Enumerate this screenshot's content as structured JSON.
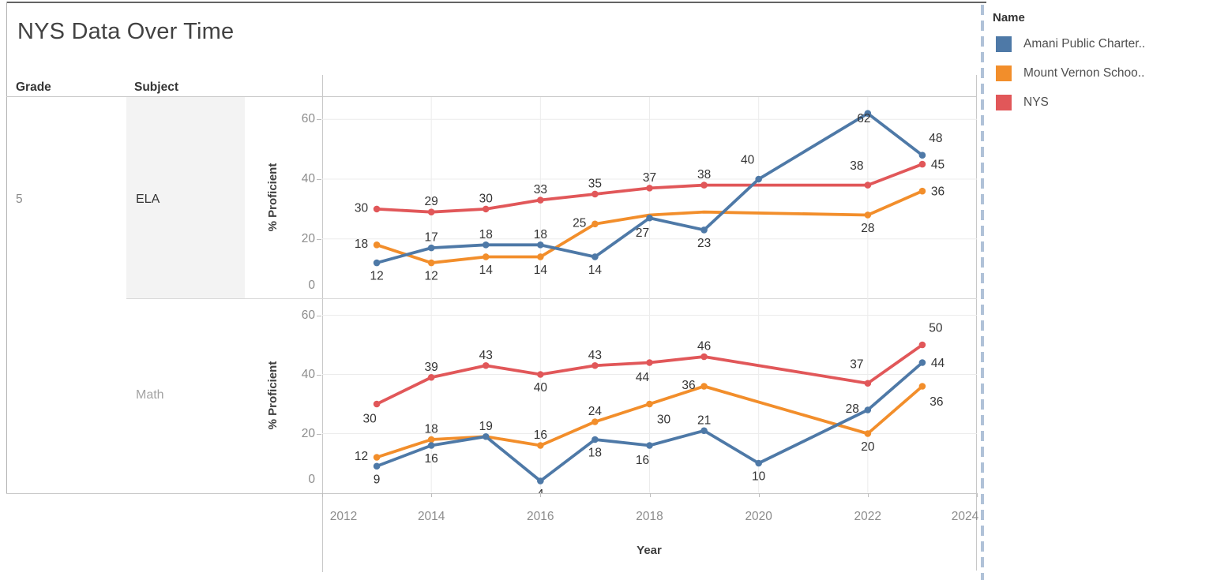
{
  "title": "NYS Data Over Time",
  "grade": {
    "header": "Grade",
    "value": "5"
  },
  "subject": {
    "header": "Subject",
    "rows": [
      "ELA",
      "Math"
    ]
  },
  "axes": {
    "x_title": "Year",
    "y_title": "% Proficient",
    "x_ticks": [
      2012,
      2014,
      2016,
      2018,
      2020,
      2022,
      2024
    ],
    "y_ticks": [
      0,
      20,
      40,
      60
    ]
  },
  "legend": {
    "title": "Name",
    "items": [
      {
        "label": "Amani Public Charter..",
        "color": "#4e79a7"
      },
      {
        "label": "Mount Vernon Schoo..",
        "color": "#f28e2b"
      },
      {
        "label": "NYS",
        "color": "#e15759"
      }
    ]
  },
  "ui_colors": {
    "dashed_divider": "#b0c2d8",
    "gridline": "#ececec",
    "axis_line": "#c8c8c8",
    "tick_text": "#8c8c8c",
    "data_label_text": "#343434"
  },
  "chart_data": [
    {
      "type": "line",
      "panel": "ELA",
      "xlabel": "Year",
      "ylabel": "% Proficient",
      "x_ticks": [
        2012,
        2014,
        2016,
        2018,
        2020,
        2022,
        2024
      ],
      "y_ticks": [
        0,
        20,
        40,
        60
      ],
      "ylim": [
        0,
        67
      ],
      "grid": true,
      "series": [
        {
          "name": "Amani Public Charter..",
          "color": "#4e79a7",
          "points": [
            [
              2013,
              12,
              "b"
            ],
            [
              2014,
              17,
              "a"
            ],
            [
              2015,
              18,
              "a"
            ],
            [
              2016,
              18,
              "a"
            ],
            [
              2017,
              14,
              "b"
            ],
            [
              2018,
              27,
              "bl"
            ],
            [
              2019,
              23,
              "b"
            ],
            [
              2020,
              40,
              "al"
            ],
            [
              2022,
              62,
              "ol"
            ],
            [
              2023,
              48,
              "ar"
            ]
          ]
        },
        {
          "name": "Mount Vernon Schoo..",
          "color": "#f28e2b",
          "points": [
            [
              2013,
              18,
              "l"
            ],
            [
              2014,
              12,
              "b"
            ],
            [
              2015,
              14,
              "b"
            ],
            [
              2016,
              14,
              "b"
            ],
            [
              2017,
              25,
              "l"
            ],
            [
              2018,
              28,
              null
            ],
            [
              2019,
              29,
              null
            ],
            [
              2022,
              28,
              "b"
            ],
            [
              2023,
              36,
              "r"
            ]
          ]
        },
        {
          "name": "NYS",
          "color": "#e15759",
          "points": [
            [
              2013,
              30,
              "l"
            ],
            [
              2014,
              29,
              "a"
            ],
            [
              2015,
              30,
              "a"
            ],
            [
              2016,
              33,
              "a"
            ],
            [
              2017,
              35,
              "a"
            ],
            [
              2018,
              37,
              "a"
            ],
            [
              2019,
              38,
              "a"
            ],
            [
              2022,
              38,
              "al"
            ],
            [
              2023,
              45,
              "r"
            ]
          ]
        }
      ]
    },
    {
      "type": "line",
      "panel": "Math",
      "xlabel": "Year",
      "ylabel": "% Proficient",
      "x_ticks": [
        2012,
        2014,
        2016,
        2018,
        2020,
        2022,
        2024
      ],
      "y_ticks": [
        0,
        20,
        40,
        60
      ],
      "ylim": [
        0,
        65
      ],
      "grid": true,
      "series": [
        {
          "name": "Amani Public Charter..",
          "color": "#4e79a7",
          "points": [
            [
              2013,
              9,
              "b"
            ],
            [
              2014,
              16,
              "b"
            ],
            [
              2015,
              19,
              "a"
            ],
            [
              2016,
              4,
              "b"
            ],
            [
              2017,
              18,
              "b"
            ],
            [
              2018,
              16,
              "bl"
            ],
            [
              2019,
              21,
              "a"
            ],
            [
              2020,
              10,
              "b"
            ],
            [
              2022,
              28,
              "l"
            ],
            [
              2023,
              44,
              "r"
            ]
          ]
        },
        {
          "name": "Mount Vernon Schoo..",
          "color": "#f28e2b",
          "points": [
            [
              2013,
              12,
              "l"
            ],
            [
              2014,
              18,
              "a"
            ],
            [
              2015,
              19,
              null
            ],
            [
              2016,
              16,
              "a"
            ],
            [
              2017,
              24,
              "a"
            ],
            [
              2018,
              30,
              "br"
            ],
            [
              2019,
              36,
              "l"
            ],
            [
              2022,
              20,
              "b"
            ],
            [
              2023,
              36,
              "br"
            ]
          ]
        },
        {
          "name": "NYS",
          "color": "#e15759",
          "points": [
            [
              2013,
              30,
              "bl"
            ],
            [
              2014,
              39,
              "a"
            ],
            [
              2015,
              43,
              "a"
            ],
            [
              2016,
              40,
              "b"
            ],
            [
              2017,
              43,
              "a"
            ],
            [
              2018,
              44,
              "bl"
            ],
            [
              2019,
              46,
              "a"
            ],
            [
              2022,
              37,
              "al"
            ],
            [
              2023,
              50,
              "ar"
            ]
          ]
        }
      ]
    }
  ]
}
